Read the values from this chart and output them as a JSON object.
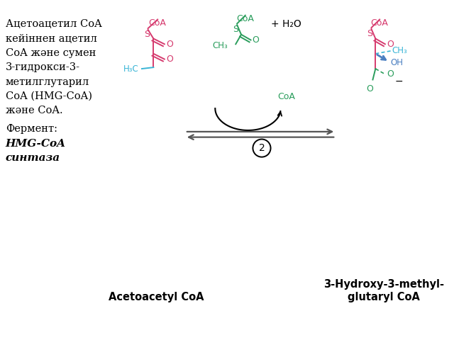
{
  "bg_color": "#ffffff",
  "text_color_black": "#000000",
  "text_color_pink": "#d63a6e",
  "text_color_green": "#2a9d5c",
  "text_color_cyan": "#3ab5d6",
  "text_color_blue": "#4a7fc1",
  "left_text_lines": [
    "Ацетоацетил CoA",
    "кейіннен ацетил",
    "CoA және сумен",
    "3-гидрокси-3-",
    "метилглутарил",
    "CoA (HMG-CoA)",
    "және CoA."
  ],
  "enzyme_label": "Фермент:",
  "enzyme_name": "HMG-CoA",
  "enzyme_name2": "синтаза",
  "label_acetoacetyl": "Acetoacetyl CoA",
  "label_hmgcoa": "3-Hydroxy-3-methyl-\nglutaryl CoA",
  "plus_h2o": "+ H₂O",
  "arrow_number": "2",
  "figsize": [
    6.4,
    4.8
  ],
  "dpi": 100
}
